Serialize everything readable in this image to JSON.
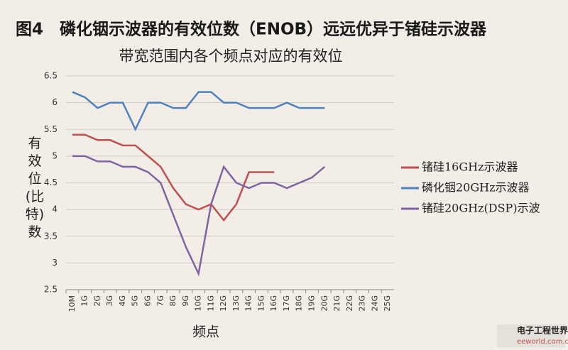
{
  "chart_data": {
    "type": "line",
    "title": "图4　磷化铟示波器的有效位数（ENOB）远远优异于锗硅示波器",
    "subtitle": "带宽范围内各个频点对应的有效位",
    "x_label": "频点",
    "y_label": "有效位(比特)数",
    "watermark": "电子工程世界",
    "watermark_url": "eeworld.com.cn",
    "categories": [
      "10M",
      "1G",
      "2G",
      "3G",
      "4G",
      "5G",
      "6G",
      "7G",
      "8G",
      "9G",
      "10G",
      "11G",
      "12G",
      "13G",
      "14G",
      "15G",
      "16G",
      "17G",
      "18G",
      "19G",
      "20G",
      "21G",
      "22G",
      "23G",
      "24G",
      "25G"
    ],
    "series": [
      {
        "name": "锗硅16GHz示波器",
        "color": "#c0504d",
        "values": [
          5.4,
          5.4,
          5.3,
          5.3,
          5.2,
          5.2,
          5.0,
          4.8,
          4.4,
          4.1,
          4.0,
          4.1,
          3.8,
          4.1,
          4.7,
          4.7,
          4.7,
          null,
          null,
          null,
          null,
          null,
          null,
          null,
          null,
          null
        ]
      },
      {
        "name": "磷化铟20GHz示波器",
        "color": "#4f81bd",
        "values": [
          6.2,
          6.1,
          5.9,
          6.0,
          6.0,
          5.5,
          6.0,
          6.0,
          5.9,
          5.9,
          6.2,
          6.2,
          6.0,
          6.0,
          5.9,
          5.9,
          5.9,
          6.0,
          5.9,
          5.9,
          5.9,
          null,
          null,
          null,
          null,
          null
        ]
      },
      {
        "name": "锗硅20GHz(DSP)示波",
        "color": "#8064a2",
        "values": [
          5.0,
          5.0,
          4.9,
          4.9,
          4.8,
          4.8,
          4.7,
          4.5,
          3.9,
          3.3,
          2.8,
          4.1,
          4.8,
          4.5,
          4.4,
          4.5,
          4.5,
          4.4,
          4.5,
          4.6,
          4.8,
          null,
          null,
          null,
          null,
          null
        ]
      }
    ],
    "ylim": [
      2.5,
      6.5
    ],
    "yticks": [
      2.5,
      3,
      3.5,
      4,
      4.5,
      5,
      5.5,
      6,
      6.5
    ],
    "grid": true,
    "legend": "right"
  }
}
